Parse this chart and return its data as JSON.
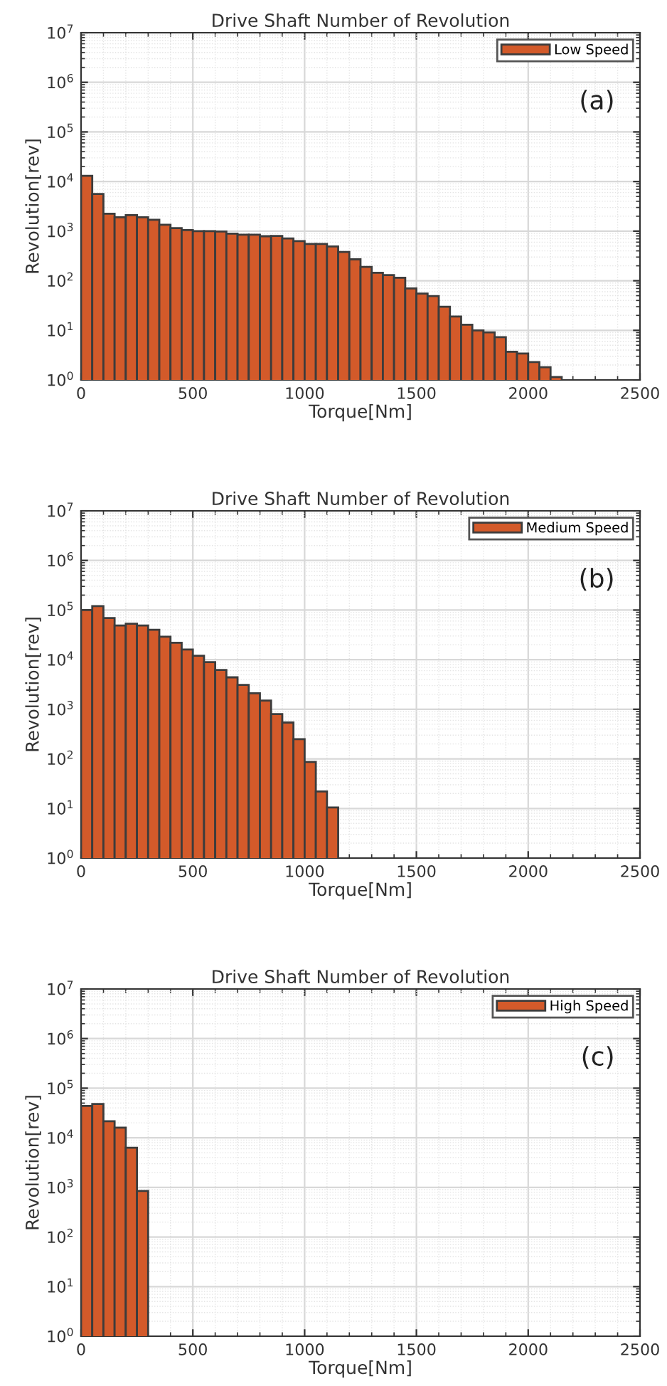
{
  "chart_data": [
    {
      "type": "histogram",
      "title": "Drive Shaft Number of Revolution",
      "xlabel": "Torque[Nm]",
      "ylabel": "Revolution[rev]",
      "annotations": [
        "(a)"
      ],
      "bins": [
        0,
        50,
        100,
        150,
        200,
        250,
        300,
        350,
        400,
        450,
        500,
        550,
        600,
        650,
        700,
        750,
        800,
        850,
        900,
        950,
        1000,
        1050,
        1100,
        1150,
        1200,
        1250,
        1300,
        1350,
        1400,
        1450,
        1500,
        1550,
        1600,
        1650,
        1700,
        1750,
        1800,
        1850,
        1900,
        1950,
        2000,
        2050,
        2100,
        2150
      ],
      "series": [
        {
          "name": "Low Speed",
          "color": "#d35a2a",
          "values": [
            13000,
            5600,
            2240,
            1900,
            2100,
            1900,
            1700,
            1350,
            1150,
            1050,
            1000,
            1000,
            980,
            890,
            850,
            850,
            790,
            800,
            710,
            630,
            550,
            550,
            490,
            380,
            270,
            190,
            145,
            130,
            115,
            70,
            55,
            49,
            30,
            19,
            13,
            10,
            9.1,
            7.3,
            3.7,
            3.4,
            2.3,
            1.8,
            1.15
          ]
        }
      ],
      "xlim": [
        0,
        2500
      ],
      "xticks": [
        0,
        500,
        1000,
        1500,
        2000,
        2500
      ],
      "log": "y",
      "ylim": [
        1,
        10000000
      ],
      "yticks": [
        {
          "value": 1,
          "label": "10$^{0}$"
        },
        {
          "value": 10,
          "label": "10$^{1}$"
        },
        {
          "value": 100,
          "label": "10$^{2}$"
        },
        {
          "value": 1000,
          "label": "10$^{3}$"
        },
        {
          "value": 10000,
          "label": "10$^{4}$"
        },
        {
          "value": 100000,
          "label": "10$^{5}$"
        },
        {
          "value": 1000000,
          "label": "10$^{6}$"
        },
        {
          "value": 10000000,
          "label": "10$^{7}$"
        }
      ],
      "grid": true,
      "legend": "top right"
    },
    {
      "type": "histogram",
      "title": "Drive Shaft Number of Revolution",
      "xlabel": "Torque[Nm]",
      "ylabel": "Revolution[rev]",
      "annotations": [
        "(b)"
      ],
      "bins": [
        0,
        50,
        100,
        150,
        200,
        250,
        300,
        350,
        400,
        450,
        500,
        550,
        600,
        650,
        700,
        750,
        800,
        850,
        900,
        950,
        1000,
        1050,
        1100,
        1150
      ],
      "series": [
        {
          "name": "Medium Speed",
          "color": "#d35a2a",
          "values": [
            100000,
            120000,
            69000,
            49000,
            53000,
            49000,
            40000,
            29000,
            22000,
            16000,
            12000,
            8900,
            6200,
            4400,
            3100,
            2100,
            1500,
            800,
            540,
            250,
            87,
            22,
            10.5
          ]
        }
      ],
      "xlim": [
        0,
        2500
      ],
      "xticks": [
        0,
        500,
        1000,
        1500,
        2000,
        2500
      ],
      "log": "y",
      "ylim": [
        1,
        10000000
      ],
      "yticks": [
        {
          "value": 1,
          "label": "10$^{0}$"
        },
        {
          "value": 10,
          "label": "10$^{1}$"
        },
        {
          "value": 100,
          "label": "10$^{2}$"
        },
        {
          "value": 1000,
          "label": "10$^{3}$"
        },
        {
          "value": 10000,
          "label": "10$^{4}$"
        },
        {
          "value": 100000,
          "label": "10$^{5}$"
        },
        {
          "value": 1000000,
          "label": "10$^{6}$"
        },
        {
          "value": 10000000,
          "label": "10$^{7}$"
        }
      ],
      "grid": true,
      "legend": "top right"
    },
    {
      "type": "histogram",
      "title": "Drive Shaft Number of Revolution",
      "xlabel": "Torque[Nm]",
      "ylabel": "Revolution[rev]",
      "annotations": [
        "(c)"
      ],
      "bins": [
        0,
        50,
        100,
        150,
        200,
        250,
        300
      ],
      "series": [
        {
          "name": "High Speed",
          "color": "#d35a2a",
          "values": [
            44000,
            48000,
            21500,
            16000,
            6300,
            850
          ]
        }
      ],
      "xlim": [
        0,
        2500
      ],
      "xticks": [
        0,
        500,
        1000,
        1500,
        2000,
        2500
      ],
      "log": "y",
      "ylim": [
        1,
        10000000
      ],
      "yticks": [
        {
          "value": 1,
          "label": "10$^{0}$"
        },
        {
          "value": 10,
          "label": "10$^{1}$"
        },
        {
          "value": 100,
          "label": "10$^{2}$"
        },
        {
          "value": 1000,
          "label": "10$^{3}$"
        },
        {
          "value": 10000,
          "label": "10$^{4}$"
        },
        {
          "value": 100000,
          "label": "10$^{5}$"
        },
        {
          "value": 1000000,
          "label": "10$^{6}$"
        },
        {
          "value": 10000000,
          "label": "10$^{7}$"
        }
      ],
      "grid": true,
      "legend": "top right"
    }
  ]
}
